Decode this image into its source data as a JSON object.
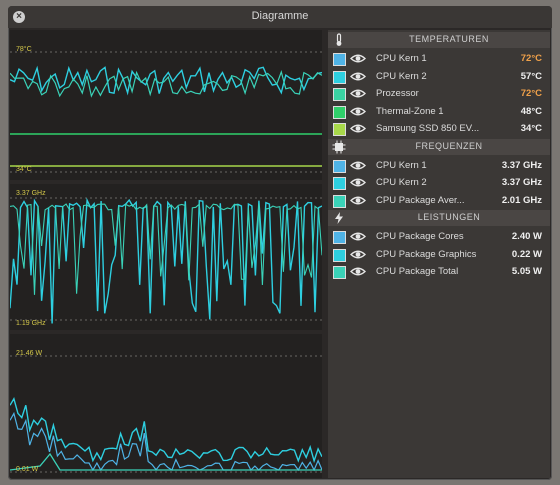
{
  "window": {
    "title": "Diagramme",
    "close_glyph": "×"
  },
  "plots": [
    {
      "name": "temperature-plot",
      "max_label": "78°C",
      "min_label": "34°C"
    },
    {
      "name": "frequency-plot",
      "max_label": "3.37 GHz",
      "min_label": "1.19 GHz"
    },
    {
      "name": "power-plot",
      "max_label": "21.46 W",
      "min_label": "0.01 W"
    }
  ],
  "sections": [
    {
      "title": "TEMPERATUREN",
      "icon": "thermometer-icon",
      "rows": [
        {
          "label": "CPU Kern 1",
          "value": "72°C",
          "color": "#4fb3e6",
          "hot": true
        },
        {
          "label": "CPU Kern 2",
          "value": "57°C",
          "color": "#2ecfe0",
          "hot": false
        },
        {
          "label": "Prozessor",
          "value": "72°C",
          "color": "#3ad2a2",
          "hot": true
        },
        {
          "label": "Thermal-Zone 1",
          "value": "48°C",
          "color": "#2fcf6a",
          "hot": false
        },
        {
          "label": "Samsung SSD 850 EV...",
          "value": "34°C",
          "color": "#a8d84a",
          "hot": false
        }
      ]
    },
    {
      "title": "FREQUENZEN",
      "icon": "chip-icon",
      "rows": [
        {
          "label": "CPU Kern 1",
          "value": "3.37 GHz",
          "color": "#4fb3e6"
        },
        {
          "label": "CPU Kern 2",
          "value": "3.37 GHz",
          "color": "#2ecfe0"
        },
        {
          "label": "CPU Package Aver...",
          "value": "2.01 GHz",
          "color": "#3ad2b8"
        }
      ]
    },
    {
      "title": "LEISTUNGEN",
      "icon": "lightning-icon",
      "rows": [
        {
          "label": "CPU Package Cores",
          "value": "2.40 W",
          "color": "#4fb3e6"
        },
        {
          "label": "CPU Package Graphics",
          "value": "0.22 W",
          "color": "#2ecfe0"
        },
        {
          "label": "CPU Package Total",
          "value": "5.05 W",
          "color": "#3ad2b8"
        }
      ]
    }
  ],
  "colors": {
    "series_blue": "#4fb3e6",
    "series_cyan": "#2ecfe0",
    "series_teal": "#3ad2b8",
    "series_green": "#2fcf6a",
    "series_lime": "#a8d84a",
    "label_yellow": "#d4c84a",
    "hot_orange": "#f0a14a"
  }
}
